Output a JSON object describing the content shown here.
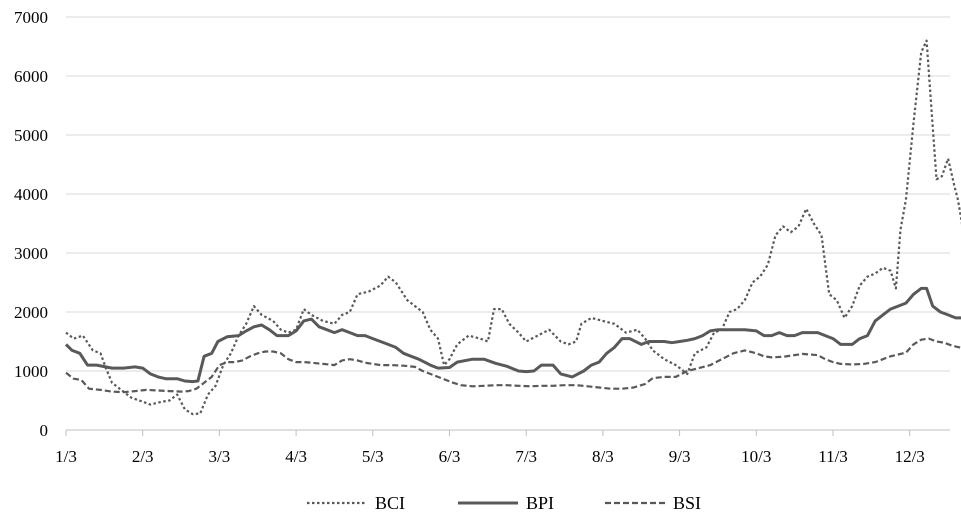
{
  "chart_data": {
    "type": "line",
    "title": "",
    "xlabel": "",
    "ylabel": "",
    "ylim": [
      0,
      7000
    ],
    "yticks": [
      0,
      1000,
      2000,
      3000,
      4000,
      5000,
      6000,
      7000
    ],
    "x_tick_labels": [
      "1/3",
      "2/3",
      "3/3",
      "4/3",
      "5/3",
      "6/3",
      "7/3",
      "8/3",
      "9/3",
      "10/3",
      "11/3",
      "12/3"
    ],
    "xlim": [
      0,
      11.63
    ],
    "grid": true,
    "legend": "bottom",
    "series": [
      {
        "name": "BCI",
        "style": "dotted",
        "color": "#595959",
        "points": [
          [
            0.0,
            1650
          ],
          [
            0.1,
            1550
          ],
          [
            0.22,
            1600
          ],
          [
            0.35,
            1350
          ],
          [
            0.45,
            1300
          ],
          [
            0.52,
            1050
          ],
          [
            0.6,
            800
          ],
          [
            0.7,
            700
          ],
          [
            0.85,
            550
          ],
          [
            1.0,
            480
          ],
          [
            1.1,
            430
          ],
          [
            1.25,
            480
          ],
          [
            1.35,
            500
          ],
          [
            1.45,
            600
          ],
          [
            1.55,
            350
          ],
          [
            1.65,
            270
          ],
          [
            1.75,
            280
          ],
          [
            1.85,
            600
          ],
          [
            1.95,
            750
          ],
          [
            2.05,
            1100
          ],
          [
            2.15,
            1300
          ],
          [
            2.25,
            1600
          ],
          [
            2.35,
            1800
          ],
          [
            2.45,
            2100
          ],
          [
            2.55,
            1950
          ],
          [
            2.7,
            1850
          ],
          [
            2.8,
            1700
          ],
          [
            2.9,
            1650
          ],
          [
            3.0,
            1700
          ],
          [
            3.1,
            2050
          ],
          [
            3.2,
            1950
          ],
          [
            3.35,
            1850
          ],
          [
            3.5,
            1800
          ],
          [
            3.6,
            1950
          ],
          [
            3.7,
            2000
          ],
          [
            3.8,
            2300
          ],
          [
            3.95,
            2350
          ],
          [
            4.1,
            2450
          ],
          [
            4.2,
            2600
          ],
          [
            4.3,
            2500
          ],
          [
            4.45,
            2200
          ],
          [
            4.55,
            2100
          ],
          [
            4.65,
            2000
          ],
          [
            4.75,
            1700
          ],
          [
            4.85,
            1550
          ],
          [
            4.93,
            1100
          ],
          [
            5.0,
            1200
          ],
          [
            5.1,
            1450
          ],
          [
            5.25,
            1600
          ],
          [
            5.4,
            1550
          ],
          [
            5.5,
            1500
          ],
          [
            5.58,
            2050
          ],
          [
            5.68,
            2050
          ],
          [
            5.78,
            1800
          ],
          [
            5.9,
            1650
          ],
          [
            6.0,
            1500
          ],
          [
            6.15,
            1600
          ],
          [
            6.3,
            1700
          ],
          [
            6.45,
            1500
          ],
          [
            6.55,
            1450
          ],
          [
            6.65,
            1500
          ],
          [
            6.72,
            1800
          ],
          [
            6.85,
            1900
          ],
          [
            7.0,
            1850
          ],
          [
            7.15,
            1800
          ],
          [
            7.3,
            1650
          ],
          [
            7.45,
            1700
          ],
          [
            7.55,
            1550
          ],
          [
            7.65,
            1350
          ],
          [
            7.8,
            1200
          ],
          [
            7.95,
            1100
          ],
          [
            8.1,
            950
          ],
          [
            8.2,
            1300
          ],
          [
            8.35,
            1400
          ],
          [
            8.45,
            1650
          ],
          [
            8.55,
            1700
          ],
          [
            8.65,
            2000
          ],
          [
            8.75,
            2050
          ],
          [
            8.85,
            2200
          ],
          [
            8.95,
            2500
          ],
          [
            9.05,
            2600
          ],
          [
            9.15,
            2800
          ],
          [
            9.25,
            3300
          ],
          [
            9.35,
            3450
          ],
          [
            9.45,
            3350
          ],
          [
            9.55,
            3450
          ],
          [
            9.65,
            3750
          ],
          [
            9.75,
            3500
          ],
          [
            9.85,
            3300
          ],
          [
            9.95,
            2300
          ],
          [
            10.05,
            2200
          ],
          [
            10.15,
            1900
          ],
          [
            10.25,
            2100
          ],
          [
            10.35,
            2450
          ],
          [
            10.45,
            2600
          ],
          [
            10.55,
            2650
          ],
          [
            10.65,
            2750
          ],
          [
            10.75,
            2700
          ],
          [
            10.82,
            2400
          ],
          [
            10.88,
            3400
          ],
          [
            10.95,
            3900
          ],
          [
            11.05,
            5200
          ],
          [
            11.15,
            6400
          ],
          [
            11.22,
            6600
          ],
          [
            11.28,
            5500
          ],
          [
            11.35,
            4250
          ],
          [
            11.42,
            4300
          ],
          [
            11.5,
            4600
          ],
          [
            11.58,
            4150
          ],
          [
            11.63,
            3900
          ],
          [
            11.7,
            3350
          ]
        ]
      },
      {
        "name": "BPI",
        "style": "solid",
        "color": "#595959",
        "points": [
          [
            0.0,
            1450
          ],
          [
            0.08,
            1350
          ],
          [
            0.18,
            1300
          ],
          [
            0.28,
            1100
          ],
          [
            0.4,
            1100
          ],
          [
            0.6,
            1050
          ],
          [
            0.75,
            1050
          ],
          [
            0.9,
            1070
          ],
          [
            1.0,
            1050
          ],
          [
            1.1,
            950
          ],
          [
            1.2,
            900
          ],
          [
            1.3,
            870
          ],
          [
            1.45,
            870
          ],
          [
            1.55,
            830
          ],
          [
            1.65,
            820
          ],
          [
            1.72,
            830
          ],
          [
            1.8,
            1250
          ],
          [
            1.9,
            1300
          ],
          [
            1.98,
            1500
          ],
          [
            2.1,
            1580
          ],
          [
            2.25,
            1600
          ],
          [
            2.35,
            1680
          ],
          [
            2.45,
            1750
          ],
          [
            2.55,
            1780
          ],
          [
            2.65,
            1700
          ],
          [
            2.75,
            1600
          ],
          [
            2.9,
            1600
          ],
          [
            3.0,
            1680
          ],
          [
            3.1,
            1850
          ],
          [
            3.2,
            1880
          ],
          [
            3.3,
            1750
          ],
          [
            3.4,
            1700
          ],
          [
            3.5,
            1650
          ],
          [
            3.6,
            1700
          ],
          [
            3.7,
            1650
          ],
          [
            3.8,
            1600
          ],
          [
            3.9,
            1600
          ],
          [
            4.0,
            1550
          ],
          [
            4.1,
            1500
          ],
          [
            4.2,
            1450
          ],
          [
            4.3,
            1400
          ],
          [
            4.4,
            1300
          ],
          [
            4.5,
            1250
          ],
          [
            4.6,
            1200
          ],
          [
            4.75,
            1100
          ],
          [
            4.85,
            1050
          ],
          [
            5.0,
            1060
          ],
          [
            5.1,
            1150
          ],
          [
            5.3,
            1200
          ],
          [
            5.45,
            1200
          ],
          [
            5.6,
            1130
          ],
          [
            5.75,
            1080
          ],
          [
            5.9,
            1000
          ],
          [
            6.0,
            990
          ],
          [
            6.1,
            1000
          ],
          [
            6.2,
            1100
          ],
          [
            6.35,
            1100
          ],
          [
            6.45,
            950
          ],
          [
            6.6,
            900
          ],
          [
            6.75,
            1000
          ],
          [
            6.85,
            1100
          ],
          [
            6.95,
            1150
          ],
          [
            7.05,
            1300
          ],
          [
            7.15,
            1400
          ],
          [
            7.25,
            1550
          ],
          [
            7.35,
            1550
          ],
          [
            7.5,
            1450
          ],
          [
            7.6,
            1500
          ],
          [
            7.7,
            1500
          ],
          [
            7.8,
            1500
          ],
          [
            7.9,
            1480
          ],
          [
            8.0,
            1500
          ],
          [
            8.1,
            1520
          ],
          [
            8.2,
            1550
          ],
          [
            8.3,
            1600
          ],
          [
            8.4,
            1680
          ],
          [
            8.5,
            1700
          ],
          [
            8.7,
            1700
          ],
          [
            8.85,
            1700
          ],
          [
            9.0,
            1680
          ],
          [
            9.1,
            1600
          ],
          [
            9.2,
            1600
          ],
          [
            9.3,
            1650
          ],
          [
            9.4,
            1600
          ],
          [
            9.5,
            1600
          ],
          [
            9.6,
            1650
          ],
          [
            9.7,
            1650
          ],
          [
            9.8,
            1650
          ],
          [
            9.9,
            1600
          ],
          [
            10.0,
            1550
          ],
          [
            10.1,
            1450
          ],
          [
            10.25,
            1450
          ],
          [
            10.35,
            1550
          ],
          [
            10.45,
            1600
          ],
          [
            10.55,
            1850
          ],
          [
            10.65,
            1950
          ],
          [
            10.75,
            2050
          ],
          [
            10.85,
            2100
          ],
          [
            10.95,
            2150
          ],
          [
            11.05,
            2300
          ],
          [
            11.15,
            2400
          ],
          [
            11.22,
            2400
          ],
          [
            11.3,
            2100
          ],
          [
            11.4,
            2000
          ],
          [
            11.5,
            1950
          ],
          [
            11.6,
            1900
          ],
          [
            11.7,
            1900
          ]
        ]
      },
      {
        "name": "BSI",
        "style": "dashed",
        "color": "#595959",
        "points": [
          [
            0.0,
            970
          ],
          [
            0.1,
            870
          ],
          [
            0.2,
            850
          ],
          [
            0.3,
            700
          ],
          [
            0.45,
            680
          ],
          [
            0.6,
            650
          ],
          [
            0.75,
            640
          ],
          [
            0.9,
            660
          ],
          [
            1.05,
            680
          ],
          [
            1.2,
            670
          ],
          [
            1.35,
            660
          ],
          [
            1.5,
            650
          ],
          [
            1.6,
            660
          ],
          [
            1.7,
            700
          ],
          [
            1.8,
            800
          ],
          [
            1.9,
            900
          ],
          [
            2.0,
            1100
          ],
          [
            2.1,
            1150
          ],
          [
            2.2,
            1150
          ],
          [
            2.3,
            1180
          ],
          [
            2.4,
            1250
          ],
          [
            2.5,
            1300
          ],
          [
            2.6,
            1330
          ],
          [
            2.7,
            1330
          ],
          [
            2.8,
            1300
          ],
          [
            2.9,
            1200
          ],
          [
            3.0,
            1150
          ],
          [
            3.1,
            1150
          ],
          [
            3.2,
            1140
          ],
          [
            3.35,
            1120
          ],
          [
            3.5,
            1100
          ],
          [
            3.6,
            1180
          ],
          [
            3.7,
            1200
          ],
          [
            3.8,
            1180
          ],
          [
            3.9,
            1140
          ],
          [
            4.0,
            1120
          ],
          [
            4.1,
            1100
          ],
          [
            4.25,
            1100
          ],
          [
            4.4,
            1090
          ],
          [
            4.55,
            1070
          ],
          [
            4.65,
            1000
          ],
          [
            4.75,
            950
          ],
          [
            4.85,
            900
          ],
          [
            4.95,
            850
          ],
          [
            5.05,
            800
          ],
          [
            5.15,
            760
          ],
          [
            5.3,
            740
          ],
          [
            5.45,
            750
          ],
          [
            5.6,
            760
          ],
          [
            5.75,
            760
          ],
          [
            5.9,
            750
          ],
          [
            6.05,
            740
          ],
          [
            6.2,
            750
          ],
          [
            6.35,
            750
          ],
          [
            6.5,
            760
          ],
          [
            6.65,
            760
          ],
          [
            6.8,
            740
          ],
          [
            6.95,
            720
          ],
          [
            7.1,
            700
          ],
          [
            7.25,
            700
          ],
          [
            7.4,
            720
          ],
          [
            7.55,
            780
          ],
          [
            7.65,
            880
          ],
          [
            7.8,
            900
          ],
          [
            7.95,
            900
          ],
          [
            8.1,
            1000
          ],
          [
            8.25,
            1050
          ],
          [
            8.4,
            1100
          ],
          [
            8.55,
            1200
          ],
          [
            8.7,
            1300
          ],
          [
            8.85,
            1350
          ],
          [
            9.0,
            1300
          ],
          [
            9.1,
            1250
          ],
          [
            9.2,
            1230
          ],
          [
            9.35,
            1240
          ],
          [
            9.5,
            1270
          ],
          [
            9.6,
            1290
          ],
          [
            9.7,
            1280
          ],
          [
            9.8,
            1270
          ],
          [
            9.9,
            1200
          ],
          [
            10.0,
            1150
          ],
          [
            10.1,
            1120
          ],
          [
            10.25,
            1110
          ],
          [
            10.4,
            1120
          ],
          [
            10.55,
            1150
          ],
          [
            10.65,
            1200
          ],
          [
            10.75,
            1250
          ],
          [
            10.85,
            1280
          ],
          [
            10.95,
            1310
          ],
          [
            11.05,
            1450
          ],
          [
            11.15,
            1530
          ],
          [
            11.25,
            1550
          ],
          [
            11.35,
            1500
          ],
          [
            11.45,
            1480
          ],
          [
            11.55,
            1430
          ],
          [
            11.65,
            1400
          ],
          [
            11.7,
            1380
          ]
        ]
      }
    ]
  }
}
